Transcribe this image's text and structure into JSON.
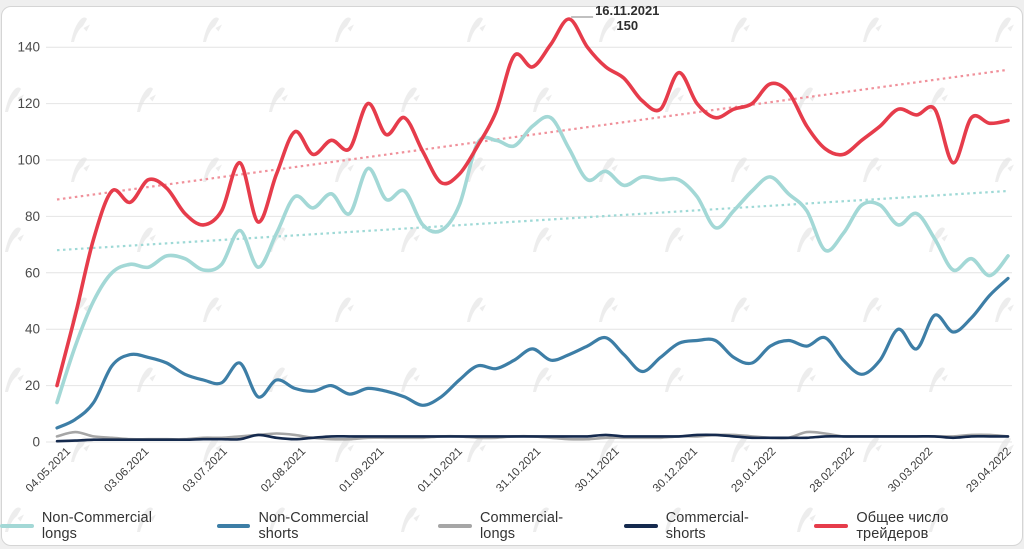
{
  "annotation": {
    "date": "16.11.2021",
    "value": "150"
  },
  "legend": {
    "items": [
      {
        "label": "Non-Commercial longs",
        "color": "#a3d8d6"
      },
      {
        "label": "Non-Commercial shorts",
        "color": "#3d7ea6"
      },
      {
        "label": "Commercial-longs",
        "color": "#a6a6a6"
      },
      {
        "label": "Commercial-shorts",
        "color": "#152a4e"
      },
      {
        "label": "Общее число трейдеров",
        "color": "#e63c4b"
      }
    ]
  },
  "colors": {
    "grid": "#e4e4e4",
    "axis_text": "#4a4a4a",
    "watermark": "#ededed",
    "annotation_connector": "#9b9b9b",
    "card_border": "#d5d5d5"
  },
  "chart_data": {
    "type": "line",
    "title": "",
    "xlabel": "",
    "ylabel": "",
    "ylim": [
      0,
      155
    ],
    "grid": "horizontal",
    "legend_position": "bottom",
    "y_ticks": [
      0,
      20,
      40,
      60,
      80,
      100,
      120,
      140
    ],
    "x_tick_labels": [
      "04.05.2021",
      "03.06.2021",
      "03.07.2021",
      "02.08.2021",
      "01.09.2021",
      "01.10.2021",
      "31.10.2021",
      "30.11.2021",
      "30.12.2021",
      "29.01.2022",
      "28.02.2022",
      "30.03.2022",
      "29.04.2022"
    ],
    "x_note": "weekly points, index 0-52",
    "series": [
      {
        "name": "Non-Commercial longs",
        "color": "#a3d8d6",
        "width": 3.6,
        "values": [
          14,
          34,
          50,
          60,
          63,
          62,
          66,
          65,
          61,
          63,
          75,
          62,
          74,
          87,
          83,
          88,
          81,
          97,
          86,
          89,
          77,
          75,
          84,
          106,
          107,
          105,
          112,
          115,
          104,
          93,
          96,
          91,
          94,
          93,
          93,
          87,
          76,
          82,
          89,
          94,
          88,
          82,
          68,
          74,
          84,
          84,
          77,
          81,
          72,
          61,
          65,
          59,
          66
        ]
      },
      {
        "name": "Non-Commercial shorts",
        "color": "#3d7ea6",
        "width": 3.2,
        "values": [
          5,
          8,
          14,
          27,
          31,
          30,
          28,
          24,
          22,
          21,
          28,
          16,
          22,
          19,
          18,
          20,
          17,
          19,
          18,
          16,
          13,
          16,
          22,
          27,
          26,
          29,
          33,
          29,
          31,
          34,
          37,
          31,
          25,
          30,
          35,
          36,
          36,
          30,
          28,
          34,
          36,
          34,
          37,
          29,
          24,
          29,
          40,
          33,
          45,
          39,
          44,
          52,
          58
        ]
      },
      {
        "name": "Commercial-longs",
        "color": "#a6a6a6",
        "width": 2.6,
        "values": [
          2,
          3.5,
          2,
          1.5,
          1,
          1,
          1,
          1,
          1.5,
          1.5,
          2,
          2.5,
          3,
          2.5,
          1.5,
          1,
          1,
          1.5,
          1.5,
          1.5,
          1.5,
          2,
          2,
          1.5,
          1.5,
          2,
          2,
          1.5,
          1,
          1,
          1.5,
          1.5,
          1.5,
          1.5,
          2,
          2,
          2.5,
          2.5,
          2,
          1.5,
          1.5,
          3.5,
          3,
          2,
          2,
          2,
          2,
          2,
          2,
          2,
          2.5,
          2.5,
          2
        ]
      },
      {
        "name": "Commercial-shorts",
        "color": "#152a4e",
        "width": 2.6,
        "values": [
          0.3,
          0.5,
          0.8,
          0.8,
          0.8,
          0.8,
          0.8,
          0.8,
          1,
          1,
          1,
          2.5,
          1.5,
          1,
          1.5,
          2,
          2,
          2,
          2,
          2,
          2,
          2,
          2,
          2,
          2,
          2,
          2,
          2,
          2,
          2,
          2.5,
          2,
          2,
          2,
          2,
          2.5,
          2.5,
          2,
          1.5,
          1.5,
          1.5,
          1.5,
          2,
          2,
          2,
          2,
          2,
          2,
          2,
          1.5,
          2,
          2,
          2
        ]
      },
      {
        "name": "Общее число трейдеров",
        "color": "#e63c4b",
        "width": 3.6,
        "values": [
          20,
          45,
          72,
          89,
          85,
          93,
          90,
          81,
          77,
          82,
          99,
          78,
          95,
          110,
          102,
          107,
          104,
          120,
          109,
          115,
          103,
          92,
          95,
          105,
          117,
          137,
          133,
          141,
          150,
          140,
          133,
          129,
          121,
          118,
          131,
          120,
          115,
          118,
          120,
          127,
          124,
          112,
          104,
          102,
          107,
          112,
          118,
          116,
          118,
          99,
          115,
          113,
          114
        ]
      }
    ],
    "trend_lines": [
      {
        "for_series": "Общее число трейдеров",
        "color": "#f0919b",
        "start": 86,
        "end": 132
      },
      {
        "for_series": "Non-Commercial longs",
        "color": "#9ed9d6",
        "start": 68,
        "end": 89
      }
    ],
    "annotation": {
      "date": "16.11.2021",
      "value": 150,
      "series": "Общее число трейдеров",
      "at_index": 28
    }
  }
}
